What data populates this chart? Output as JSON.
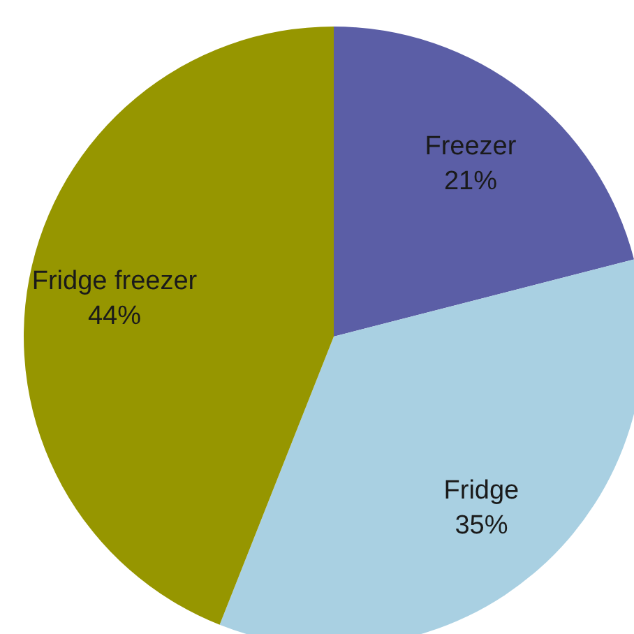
{
  "chart_data": {
    "type": "pie",
    "categories": [
      "Freezer",
      "Fridge",
      "Fridge freezer"
    ],
    "values": [
      21,
      35,
      44
    ],
    "value_labels": [
      "21%",
      "35%",
      "44%"
    ],
    "colors": [
      "#5b5ea6",
      "#a9d0e2",
      "#969600"
    ],
    "legend": false
  }
}
